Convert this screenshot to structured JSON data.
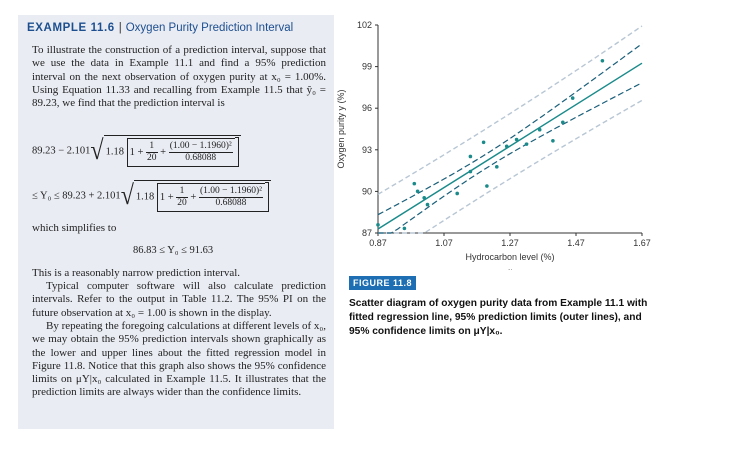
{
  "example": {
    "label": "EXAMPLE 11.6",
    "separator": "|",
    "title": "Oxygen Purity Prediction Interval"
  },
  "intro": "To illustrate the construction of a prediction interval, suppose that we use the data in Example 11.1 and find a 95% prediction interval on the next observation of oxygen purity at x₀ = 1.00%. Using Equation 11.33 and recalling from Example 11.5 that ŷ₀ = 89.23, we find that the prediction interval is",
  "eq1": {
    "lead": "89.23 − 2.101",
    "sqrt_lead": "1.18",
    "one_plus": "1 +",
    "frac1_num": "1",
    "frac1_den": "20",
    "plus": "+",
    "frac2_num": "(1.00 − 1.1960)²",
    "frac2_den": "0.68088"
  },
  "eq2": {
    "lead": "≤ Y₀ ≤ 89.23 + 2.101",
    "sqrt_lead": "1.18",
    "one_plus": "1 +",
    "frac1_num": "1",
    "frac1_den": "20",
    "plus": "+",
    "frac2_num": "(1.00 − 1.1960)²",
    "frac2_den": "0.68088"
  },
  "simplifies": "which simplifies to",
  "result": "86.83 ≤ Y₀ ≤ 91.63",
  "para1": "This is a reasonably narrow prediction interval.",
  "para2": "Typical computer software will also calculate prediction intervals. Refer to the output in Table 11.2. The 95% PI on the future observation at x₀ = 1.00 is shown in the display.",
  "para3": "By repeating the foregoing calculations at different levels of x₀, we may obtain the 95% prediction intervals shown graphically as the lower and upper lines about the fitted regression model in Figure 11.8. Notice that this graph also shows the 95% confidence limits on μY|x₀ calculated in Example 11.5. It illustrates that the prediction limits are always wider than the confidence limits.",
  "figure": {
    "label": "FIGURE 11.8",
    "caption": "Scatter diagram of oxygen purity data from Example 11.1 with fitted regression line, 95% prediction limits (outer lines), and 95% confidence limits on μY|x₀."
  },
  "chart_data": {
    "type": "scatter",
    "title": "",
    "xlabel": "Hydrocarbon level (%)",
    "xvar": "x",
    "ylabel": "Oxygen purity y (%)",
    "xlim": [
      0.87,
      1.67
    ],
    "ylim": [
      87,
      102
    ],
    "xticks": [
      "0.87",
      "1.07",
      "1.27",
      "1.47",
      "1.67"
    ],
    "yticks": [
      "87",
      "90",
      "93",
      "96",
      "99",
      "102"
    ],
    "points": [
      {
        "x": 0.99,
        "y": 90.01
      },
      {
        "x": 1.02,
        "y": 89.05
      },
      {
        "x": 1.15,
        "y": 91.43
      },
      {
        "x": 1.29,
        "y": 93.74
      },
      {
        "x": 1.46,
        "y": 96.73
      },
      {
        "x": 1.36,
        "y": 94.45
      },
      {
        "x": 0.87,
        "y": 87.59
      },
      {
        "x": 1.23,
        "y": 91.77
      },
      {
        "x": 1.55,
        "y": 99.42
      },
      {
        "x": 1.4,
        "y": 93.65
      },
      {
        "x": 1.19,
        "y": 93.54
      },
      {
        "x": 1.15,
        "y": 92.52
      },
      {
        "x": 0.98,
        "y": 90.56
      },
      {
        "x": 1.01,
        "y": 89.54
      },
      {
        "x": 1.11,
        "y": 89.85
      },
      {
        "x": 1.2,
        "y": 90.39
      },
      {
        "x": 1.26,
        "y": 93.25
      },
      {
        "x": 1.32,
        "y": 93.41
      },
      {
        "x": 1.43,
        "y": 94.98
      },
      {
        "x": 0.95,
        "y": 87.33
      }
    ],
    "series": [
      {
        "name": "fitted regression line",
        "intercept": 74.283,
        "slope": 14.947
      },
      {
        "name": "95% confidence limits",
        "style": "dashed"
      },
      {
        "name": "95% prediction limits",
        "style": "dashed-light"
      }
    ],
    "colors": {
      "points": "#1a8a8a",
      "fit": "#1a8a8a",
      "confidence": "#1a5f7a",
      "prediction": "#b8c6d4"
    }
  }
}
